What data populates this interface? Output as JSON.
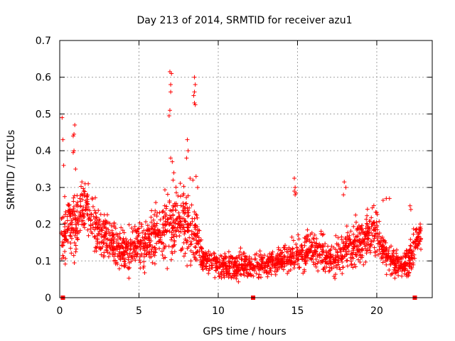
{
  "chart_data": {
    "type": "scatter",
    "title": "Day 213 of 2014, SRMTID for receiver azu1",
    "xlabel": "GPS time / hours",
    "ylabel": "SRMTID / TECUs",
    "xlim": [
      0,
      23.5
    ],
    "ylim": [
      0,
      0.7
    ],
    "xticks": [
      0,
      5,
      10,
      15,
      20
    ],
    "yticks": [
      0,
      0.1,
      0.2,
      0.3,
      0.4,
      0.5,
      0.6,
      0.7
    ],
    "grid": true,
    "marker": "plus",
    "color": "#ff0000",
    "zero_points_x": [
      0.2,
      12.2,
      22.4
    ],
    "envelope_hours": [
      0.1,
      0.5,
      1.0,
      1.5,
      2.0,
      2.5,
      3.0,
      3.5,
      4.0,
      4.5,
      5.0,
      5.5,
      6.0,
      6.5,
      7.0,
      7.5,
      8.0,
      8.5,
      9.0,
      9.5,
      10.0,
      10.5,
      11.0,
      11.5,
      12.0,
      12.5,
      13.0,
      13.5,
      14.0,
      14.5,
      15.0,
      15.5,
      16.0,
      16.5,
      17.0,
      17.5,
      18.0,
      18.5,
      19.0,
      19.5,
      20.0,
      20.5,
      21.0,
      21.5,
      22.0,
      22.5,
      22.8
    ],
    "envelope_mean": [
      0.18,
      0.19,
      0.2,
      0.25,
      0.22,
      0.18,
      0.16,
      0.14,
      0.12,
      0.13,
      0.14,
      0.15,
      0.18,
      0.17,
      0.2,
      0.22,
      0.2,
      0.18,
      0.11,
      0.1,
      0.09,
      0.08,
      0.08,
      0.085,
      0.09,
      0.09,
      0.09,
      0.1,
      0.1,
      0.11,
      0.12,
      0.12,
      0.13,
      0.12,
      0.1,
      0.11,
      0.13,
      0.14,
      0.15,
      0.17,
      0.18,
      0.12,
      0.1,
      0.09,
      0.1,
      0.15,
      0.18
    ],
    "envelope_spread": [
      0.06,
      0.07,
      0.08,
      0.05,
      0.06,
      0.05,
      0.05,
      0.05,
      0.04,
      0.05,
      0.05,
      0.05,
      0.06,
      0.06,
      0.08,
      0.08,
      0.07,
      0.08,
      0.03,
      0.03,
      0.03,
      0.03,
      0.03,
      0.03,
      0.025,
      0.03,
      0.025,
      0.03,
      0.03,
      0.03,
      0.035,
      0.035,
      0.04,
      0.035,
      0.035,
      0.04,
      0.045,
      0.05,
      0.05,
      0.05,
      0.05,
      0.035,
      0.035,
      0.03,
      0.04,
      0.04,
      0.03
    ],
    "highlight_points": [
      {
        "x": 0.15,
        "y": 0.49
      },
      {
        "x": 0.2,
        "y": 0.43
      },
      {
        "x": 0.25,
        "y": 0.36
      },
      {
        "x": 0.95,
        "y": 0.47
      },
      {
        "x": 0.9,
        "y": 0.445
      },
      {
        "x": 0.85,
        "y": 0.44
      },
      {
        "x": 0.9,
        "y": 0.4
      },
      {
        "x": 0.85,
        "y": 0.395
      },
      {
        "x": 1.0,
        "y": 0.35
      },
      {
        "x": 1.4,
        "y": 0.315
      },
      {
        "x": 1.6,
        "y": 0.31
      },
      {
        "x": 1.8,
        "y": 0.31
      },
      {
        "x": 6.95,
        "y": 0.615
      },
      {
        "x": 7.05,
        "y": 0.61
      },
      {
        "x": 7.0,
        "y": 0.58
      },
      {
        "x": 7.0,
        "y": 0.56
      },
      {
        "x": 6.95,
        "y": 0.51
      },
      {
        "x": 6.9,
        "y": 0.495
      },
      {
        "x": 7.0,
        "y": 0.38
      },
      {
        "x": 7.1,
        "y": 0.37
      },
      {
        "x": 7.2,
        "y": 0.34
      },
      {
        "x": 7.15,
        "y": 0.32
      },
      {
        "x": 8.5,
        "y": 0.6
      },
      {
        "x": 8.55,
        "y": 0.58
      },
      {
        "x": 8.5,
        "y": 0.56
      },
      {
        "x": 8.45,
        "y": 0.55
      },
      {
        "x": 8.55,
        "y": 0.525
      },
      {
        "x": 8.5,
        "y": 0.53
      },
      {
        "x": 8.05,
        "y": 0.43
      },
      {
        "x": 8.1,
        "y": 0.4
      },
      {
        "x": 8.0,
        "y": 0.38
      },
      {
        "x": 8.6,
        "y": 0.33
      },
      {
        "x": 8.7,
        "y": 0.3
      },
      {
        "x": 8.4,
        "y": 0.32
      },
      {
        "x": 14.8,
        "y": 0.325
      },
      {
        "x": 14.85,
        "y": 0.3
      },
      {
        "x": 14.8,
        "y": 0.29
      },
      {
        "x": 14.85,
        "y": 0.28
      },
      {
        "x": 14.9,
        "y": 0.285
      },
      {
        "x": 17.95,
        "y": 0.315
      },
      {
        "x": 18.05,
        "y": 0.3
      },
      {
        "x": 17.9,
        "y": 0.28
      },
      {
        "x": 20.6,
        "y": 0.27
      },
      {
        "x": 20.8,
        "y": 0.27
      },
      {
        "x": 20.4,
        "y": 0.265
      },
      {
        "x": 22.1,
        "y": 0.25
      },
      {
        "x": 22.15,
        "y": 0.24
      }
    ],
    "random_seed": 213
  }
}
